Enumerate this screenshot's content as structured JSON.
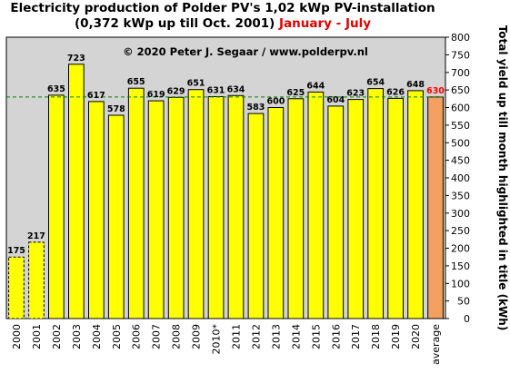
{
  "chart_data": {
    "type": "bar",
    "title_line1": "Electricity production  of Polder PV's 1,02 kWp PV-installation",
    "title_line2": "(0,372 kWp up till Oct. 2001)",
    "title_highlight": "January - July",
    "annotation": "© 2020 Peter J. Segaar / www.polderpv.nl",
    "ylabel": "Total yield up till month highlighted in title (kWh)",
    "ylim": [
      0,
      800
    ],
    "ytick_step": 50,
    "categories": [
      "2000",
      "2001",
      "2002",
      "2003",
      "2004",
      "2005",
      "2006",
      "2007",
      "2008",
      "2009",
      "2010*",
      "2011",
      "2012",
      "2013",
      "2014",
      "2015",
      "2016",
      "2017",
      "2018",
      "2019",
      "2020",
      "average"
    ],
    "values": [
      175,
      217,
      635,
      723,
      617,
      578,
      655,
      619,
      629,
      651,
      631,
      634,
      583,
      600,
      625,
      644,
      604,
      623,
      654,
      626,
      648,
      630
    ],
    "partial_years": [
      "2000",
      "2001"
    ],
    "reference_line": 630,
    "grid": false,
    "colors": {
      "bar": "#ffff00",
      "average_bar": "#f4a060",
      "average_label": "#ff0000",
      "plot_bg": "#d4d4d4",
      "reference_line": "#008000"
    }
  }
}
